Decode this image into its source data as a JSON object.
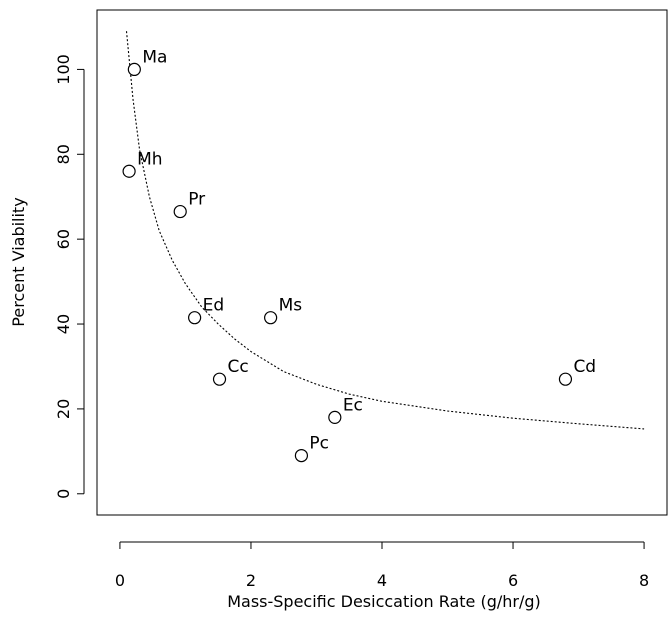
{
  "chart_data": {
    "type": "scatter",
    "xlabel": "Mass-Specific Desiccation Rate (g/hr/g)",
    "ylabel": "Percent Viability",
    "xlim": [
      -0.35,
      8.35
    ],
    "ylim": [
      -5,
      114
    ],
    "x_ticks": [
      0,
      2,
      4,
      6,
      8
    ],
    "x_tick_labels": [
      "0",
      "2",
      "4",
      "6",
      "8"
    ],
    "y_ticks": [
      0,
      20,
      40,
      60,
      80,
      100
    ],
    "y_tick_labels": [
      "0",
      "20",
      "40",
      "60",
      "80",
      "100"
    ],
    "grid": false,
    "points": [
      {
        "label": "Ma",
        "x": 0.22,
        "y": 100
      },
      {
        "label": "Mh",
        "x": 0.14,
        "y": 76
      },
      {
        "label": "Pr",
        "x": 0.92,
        "y": 66.5
      },
      {
        "label": "Ed",
        "x": 1.14,
        "y": 41.5
      },
      {
        "label": "Ms",
        "x": 2.3,
        "y": 41.5
      },
      {
        "label": "Cc",
        "x": 1.52,
        "y": 27
      },
      {
        "label": "Cd",
        "x": 6.8,
        "y": 27
      },
      {
        "label": "Ec",
        "x": 3.28,
        "y": 18
      },
      {
        "label": "Pc",
        "x": 2.77,
        "y": 9
      }
    ],
    "fit_curve": {
      "style": "dotted",
      "points": [
        [
          0.1,
          109
        ],
        [
          0.2,
          93
        ],
        [
          0.3,
          81
        ],
        [
          0.45,
          70
        ],
        [
          0.6,
          62
        ],
        [
          0.8,
          55
        ],
        [
          1.0,
          49.5
        ],
        [
          1.25,
          44
        ],
        [
          1.5,
          40
        ],
        [
          1.75,
          36.5
        ],
        [
          2.0,
          33.5
        ],
        [
          2.5,
          28.8
        ],
        [
          3.0,
          25.8
        ],
        [
          3.5,
          23.5
        ],
        [
          4.0,
          21.8
        ],
        [
          5.0,
          19.5
        ],
        [
          6.0,
          17.8
        ],
        [
          7.0,
          16.5
        ],
        [
          8.0,
          15.3
        ]
      ]
    }
  }
}
